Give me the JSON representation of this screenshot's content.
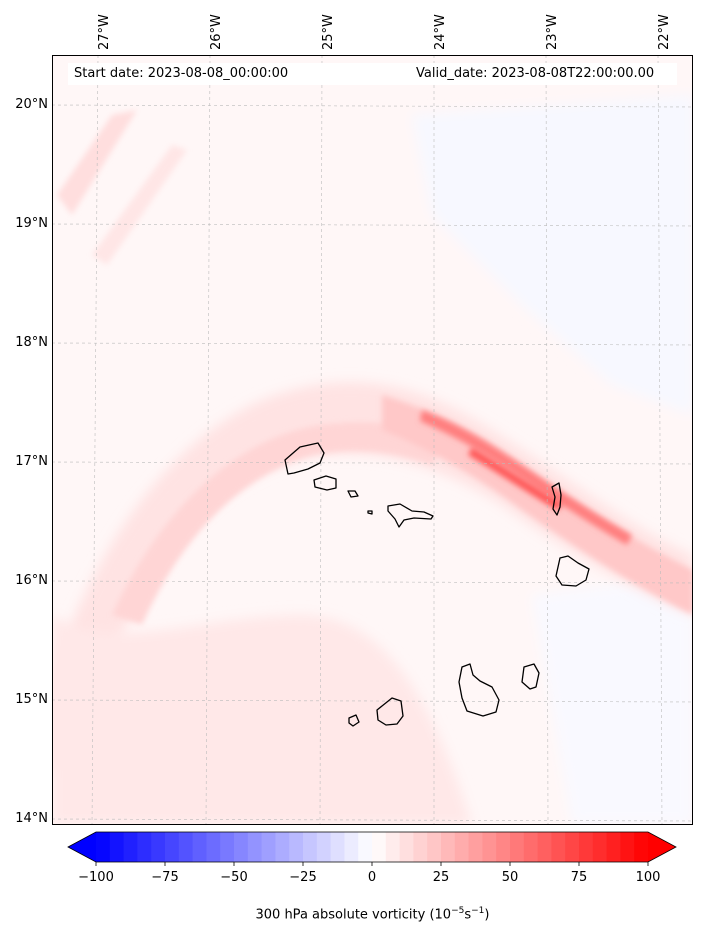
{
  "map": {
    "start_date_label": "Start date: 2023-08-08_00:00:00",
    "valid_date_label": "Valid_date: 2023-08-08T22:00:00.00",
    "longitude_labels": [
      "27°W",
      "26°W",
      "25°W",
      "24°W",
      "23°W",
      "22°W"
    ],
    "latitude_labels": [
      "20°N",
      "19°N",
      "18°N",
      "17°N",
      "16°N",
      "15°N",
      "14°N"
    ],
    "gridlines": true,
    "field": "300 hPa absolute vorticity",
    "region": "Cape Verde Islands"
  },
  "colorbar": {
    "title_prefix": "300 hPa absolute vorticity (10",
    "title_exp1": "−5",
    "title_mid": "s",
    "title_exp2": "−1",
    "title_suffix": ")",
    "min": -100,
    "max": 100,
    "tick_values": [
      -100,
      -75,
      -50,
      -25,
      0,
      25,
      50,
      75,
      100
    ],
    "tick_labels": [
      "−100",
      "−75",
      "−50",
      "−25",
      "0",
      "25",
      "50",
      "75",
      "100"
    ],
    "extend": "both",
    "colormap": "bwr",
    "low_color": "#0000ff",
    "mid_color": "#ffffff",
    "high_color": "#ff0000"
  }
}
